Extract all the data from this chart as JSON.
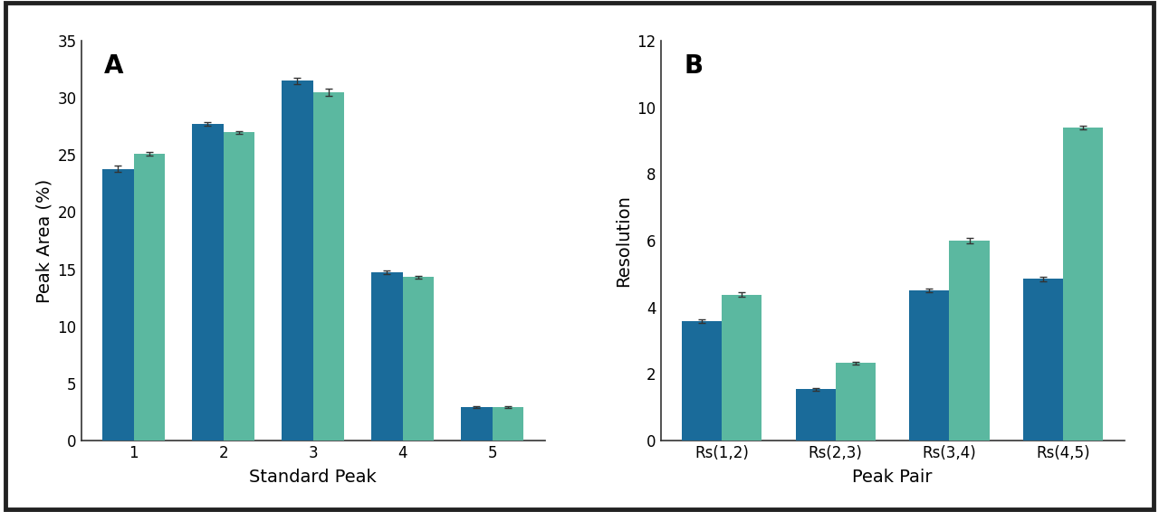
{
  "panel_A": {
    "categories": [
      "1",
      "2",
      "3",
      "4",
      "5"
    ],
    "hplc_values": [
      23.8,
      27.7,
      31.5,
      14.7,
      2.9
    ],
    "uplc_values": [
      25.1,
      27.0,
      30.5,
      14.3,
      2.95
    ],
    "hplc_errors": [
      0.3,
      0.15,
      0.25,
      0.15,
      0.08
    ],
    "uplc_errors": [
      0.15,
      0.12,
      0.3,
      0.1,
      0.08
    ],
    "xlabel": "Standard Peak",
    "ylabel": "Peak Area (%)",
    "ylim": [
      0,
      35
    ],
    "yticks": [
      0,
      5,
      10,
      15,
      20,
      25,
      30,
      35
    ],
    "label": "A"
  },
  "panel_B": {
    "categories": [
      "Rs(1,2)",
      "Rs(2,3)",
      "Rs(3,4)",
      "Rs(4,5)"
    ],
    "hplc_values": [
      3.58,
      1.53,
      4.5,
      4.85
    ],
    "uplc_values": [
      4.38,
      2.32,
      6.0,
      9.4
    ],
    "hplc_errors": [
      0.05,
      0.05,
      0.06,
      0.06
    ],
    "uplc_errors": [
      0.07,
      0.04,
      0.07,
      0.05
    ],
    "xlabel": "Peak Pair",
    "ylabel": "Resolution",
    "ylim": [
      0,
      12
    ],
    "yticks": [
      0,
      2,
      4,
      6,
      8,
      10,
      12
    ],
    "label": "B"
  },
  "color_hplc": "#1a6b9a",
  "color_uplc": "#5bb8a0",
  "bar_width": 0.35,
  "background_color": "#ffffff",
  "border_color": "#222222",
  "figure_bg": "#ffffff"
}
